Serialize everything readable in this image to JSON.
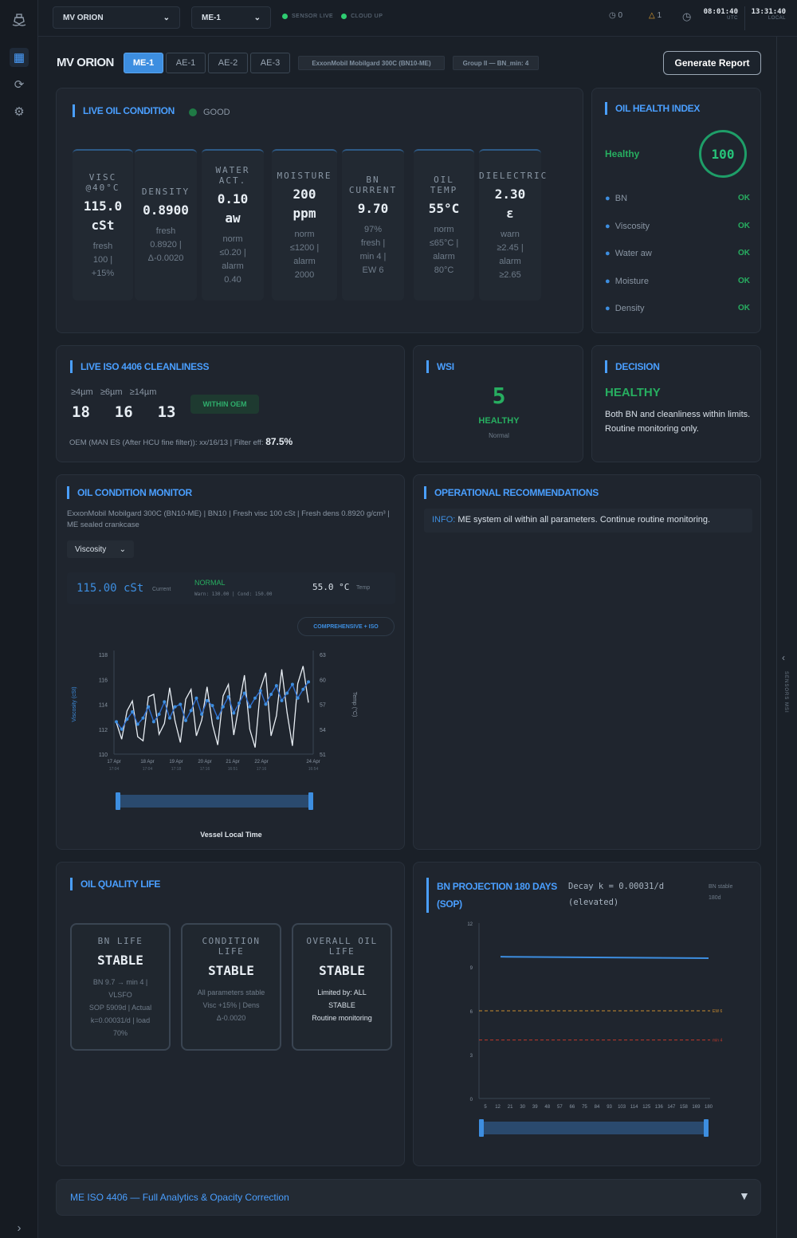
{
  "topbar": {
    "vessel": "MV ORION",
    "engine": "ME-1",
    "sensor": "SENSOR LIVE",
    "cloud": "CLOUD UP",
    "alerts": "0",
    "warnings": "1",
    "utc_time": "08:01:40",
    "utc_label": "UTC",
    "local_time": "13:31:40",
    "local_label": "LOCAL"
  },
  "header": {
    "title": "MV ORION",
    "tabs": [
      "ME-1",
      "AE-1",
      "AE-2",
      "AE-3"
    ],
    "oil_chip": "ExxonMobil Mobilgard 300C (BN10-ME)",
    "group_chip": "Group II — BN_min: 4",
    "report_button": "Generate Report"
  },
  "live": {
    "title": "LIVE OIL CONDITION",
    "status": "GOOD",
    "cards": [
      {
        "label": [
          "VISC",
          "@40°C"
        ],
        "value": [
          "115.0",
          "cSt"
        ],
        "sub": [
          "fresh",
          "100 |",
          "+15%"
        ]
      },
      {
        "label": [
          "DENSITY"
        ],
        "value": [
          "0.8900"
        ],
        "sub": [
          "fresh",
          "0.8920 |",
          "Δ-0.0020"
        ]
      },
      {
        "label": [
          "WATER",
          "ACT."
        ],
        "value": [
          "0.10",
          "aw"
        ],
        "sub": [
          "norm",
          "≤0.20 |",
          "alarm",
          "0.40"
        ]
      },
      {
        "label": [
          "MOISTURE"
        ],
        "value": [
          "200",
          "ppm"
        ],
        "sub": [
          "norm",
          "≤1200 |",
          "alarm",
          "2000"
        ]
      },
      {
        "label": [
          "BN",
          "CURRENT"
        ],
        "value": [
          "9.70"
        ],
        "sub": [
          "97%",
          "fresh |",
          "min 4 |",
          "EW 6"
        ]
      },
      {
        "label": [
          "OIL",
          "TEMP"
        ],
        "value": [
          "55°C"
        ],
        "sub": [
          "norm",
          "≤65°C |",
          "alarm",
          "80°C"
        ]
      },
      {
        "label": [
          "DIELECTRIC"
        ],
        "value": [
          "2.30",
          "ε"
        ],
        "sub": [
          "warn",
          "≥2.45 |",
          "alarm",
          "≥2.65"
        ]
      }
    ]
  },
  "health": {
    "title": "OIL HEALTH INDEX",
    "status": "Healthy",
    "score": "100",
    "items": [
      {
        "name": "BN",
        "state": "OK"
      },
      {
        "name": "Viscosity",
        "state": "OK"
      },
      {
        "name": "Water aw",
        "state": "OK"
      },
      {
        "name": "Moisture",
        "state": "OK"
      },
      {
        "name": "Density",
        "state": "OK"
      }
    ]
  },
  "iso": {
    "title": "LIVE ISO 4406 CLEANLINESS",
    "labels": [
      "≥4µm",
      "≥6µm",
      "≥14µm"
    ],
    "values": [
      "18",
      "16",
      "13"
    ],
    "badge": "WITHIN OEM",
    "note": "OEM (MAN ES (After HCU fine filter)): xx/16/13 | Filter eff:",
    "eff": "87.5%"
  },
  "wsi": {
    "title": "WSI",
    "value": "5",
    "status": "HEALTHY",
    "sub": "Normal"
  },
  "decision": {
    "title": "DECISION",
    "status": "HEALTHY",
    "text": "Both BN and cleanliness within limits. Routine monitoring only."
  },
  "monitor": {
    "title": "OIL CONDITION MONITOR",
    "desc": "ExxonMobil Mobilgard 300C (BN10-ME) | BN10 | Fresh visc 100 cSt | Fresh dens 0.8920 g/cm³ | ME sealed crankcase",
    "param": "Viscosity",
    "current": "115.00 cSt",
    "current_label": "Current",
    "state": "NORMAL",
    "limits": "Warn: 130.00 | Cond: 150.00",
    "temp": "55.0 °C",
    "temp_label": "Temp",
    "mode_button": "COMPREHENSIVE + ISO",
    "xlabel": "Vessel Local Time"
  },
  "ops": {
    "title": "OPERATIONAL RECOMMENDATIONS",
    "prefix": "INFO:",
    "text": "ME system oil within all parameters. Continue routine monitoring."
  },
  "quality": {
    "title": "OIL QUALITY LIFE",
    "cards": [
      {
        "label": [
          "BN LIFE"
        ],
        "value": "STABLE",
        "sub": [
          "BN 9.7 → min 4 |",
          "VLSFO",
          "SOP 5909d | Actual",
          "k=0.00031/d | load",
          "70%"
        ]
      },
      {
        "label": [
          "CONDITION",
          "LIFE"
        ],
        "value": "STABLE",
        "sub": [
          "All parameters stable",
          "Visc +15% | Dens",
          "Δ-0.0020"
        ]
      },
      {
        "label": [
          "OVERALL OIL",
          "LIFE"
        ],
        "value": "STABLE",
        "sub": [
          "Limited by: ALL",
          "STABLE",
          "Routine monitoring"
        ]
      }
    ]
  },
  "bnproj": {
    "title": [
      "BN PROJECTION 180 DAYS",
      "(SOP)"
    ],
    "decay": [
      "Decay k = 0.00031/d",
      "(elevated)"
    ],
    "stable": [
      "BN stable",
      "180d"
    ]
  },
  "footer": {
    "title": "ME ISO 4406 — Full Analytics & Opacity Correction"
  },
  "side": {
    "label": "SENSORS MSI"
  },
  "chart_data": [
    {
      "type": "line",
      "yleft": {
        "label": "Viscosity (cSt)",
        "ticks": [
          "118",
          "116",
          "114",
          "112",
          "110"
        ],
        "range": [
          110,
          118
        ]
      },
      "yright": {
        "label": "Temp (°C)",
        "ticks": [
          "63",
          "60",
          "57",
          "54",
          "51"
        ],
        "range": [
          51,
          63
        ]
      },
      "x_ticks": [
        [
          "17 Apr",
          "17:04"
        ],
        [
          "18 Apr",
          "17:04"
        ],
        [
          "19 Apr",
          "17:18"
        ],
        [
          "20 Apr",
          "17:16"
        ],
        [
          "21 Apr",
          "16:51"
        ],
        [
          "22 Apr",
          "17:16"
        ],
        [
          "24 Apr",
          "16:54"
        ]
      ],
      "series": [
        {
          "values": [
            112.6,
            112.0,
            112.8,
            113.4,
            112.4,
            112.9,
            113.8,
            112.6,
            113.2,
            114.2,
            112.9,
            113.8,
            114.0,
            112.7,
            113.5,
            114.5,
            113.2,
            114.3,
            113.9,
            112.9,
            113.8,
            114.6,
            113.3,
            114.1,
            114.9,
            113.8,
            114.5,
            115.1,
            114.0,
            114.8,
            115.5,
            114.3,
            114.9,
            115.6,
            114.5,
            115.2,
            115.8
          ]
        },
        {
          "values": [
            54.8,
            52.8,
            56.2,
            57.4,
            53.1,
            52.6,
            57.9,
            58.2,
            53.4,
            54.7,
            59.0,
            55.0,
            52.4,
            57.6,
            58.8,
            53.2,
            55.1,
            59.1,
            54.6,
            52.1,
            58.0,
            59.4,
            53.3,
            56.9,
            60.5,
            54.0,
            51.8,
            58.9,
            60.8,
            53.2,
            55.6,
            61.2,
            56.0,
            52.0,
            59.5,
            61.6,
            57.2
          ]
        }
      ]
    },
    {
      "type": "line",
      "y_ticks": [
        "12",
        "9",
        "6",
        "3",
        "0"
      ],
      "yrange": [
        0,
        12
      ],
      "x_ticks": [
        "5",
        "12",
        "21",
        "30",
        "39",
        "48",
        "57",
        "66",
        "75",
        "84",
        "93",
        "103",
        "114",
        "125",
        "136",
        "147",
        "158",
        "169",
        "180"
      ],
      "series": [
        {
          "values": [
            9.7,
            9.6
          ]
        }
      ],
      "thresholds": [
        {
          "name": "EW 6",
          "value": 6
        },
        {
          "name": "min 4",
          "value": 4
        }
      ]
    }
  ]
}
